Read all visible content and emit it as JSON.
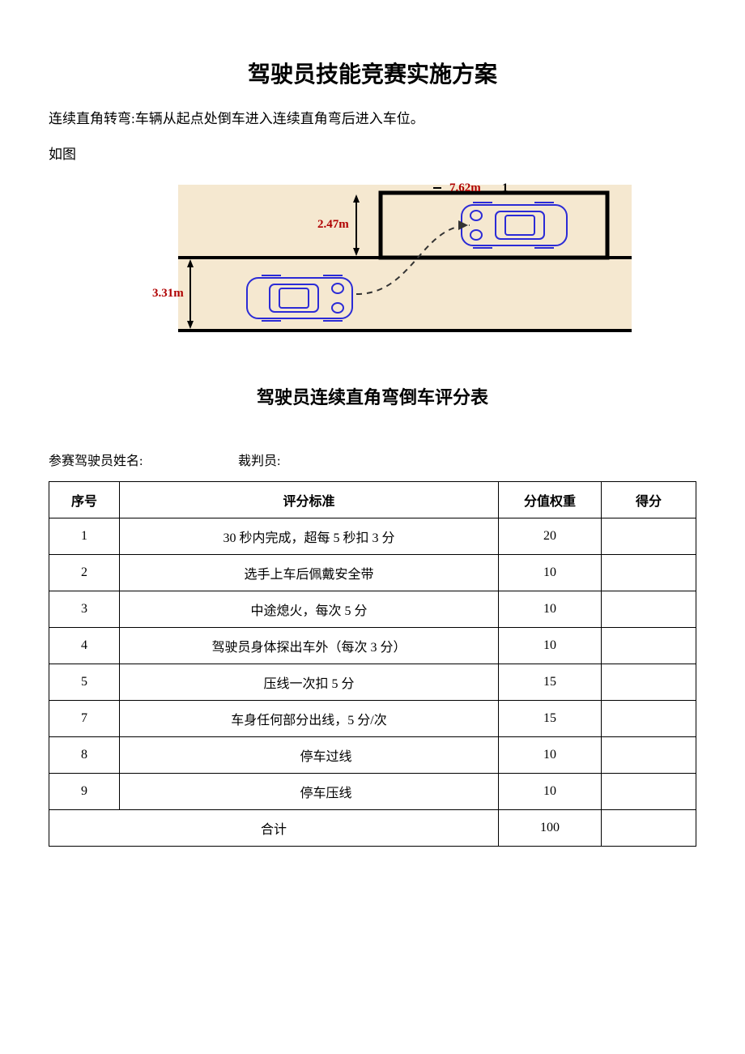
{
  "title": "驾驶员技能竞赛实施方案",
  "intro_line1": "连续直角转弯:车辆从起点处倒车进入连续直角弯后进入车位。",
  "intro_line2": "如图",
  "diagram": {
    "bg_color": "#f5e8d0",
    "line_color": "#000000",
    "car_color": "#2b2bd6",
    "label_color": "#b00000",
    "dim_top": "7.62m",
    "dim_top_extra": "1",
    "dim_slot_h": "2.47m",
    "dim_lane_h": "3.31m"
  },
  "subtitle": "驾驶员连续直角弯倒车评分表",
  "form": {
    "driver_label": "参赛驾驶员姓名:",
    "judge_label": "裁判员:"
  },
  "table": {
    "headers": {
      "seq": "序号",
      "crit": "评分标准",
      "weight": "分值权重",
      "score": "得分"
    },
    "rows": [
      {
        "seq": "1",
        "crit": "30 秒内完成，超每 5 秒扣 3 分",
        "weight": "20",
        "score": "",
        "big": true,
        "align": "center"
      },
      {
        "seq": "2",
        "crit": "选手上车后佩戴安全带",
        "weight": "10",
        "score": "",
        "big": false,
        "align": "center"
      },
      {
        "seq": "3",
        "crit": "中途熄火，每次 5 分",
        "weight": "10",
        "score": "",
        "big": false,
        "align": "center"
      },
      {
        "seq": "4",
        "crit": "驾驶员身体探出车外（每次 3 分）",
        "weight": "10",
        "score": "",
        "big": true,
        "align": "center"
      },
      {
        "seq": "5",
        "crit": "压线一次扣 5 分",
        "weight": "15",
        "score": "",
        "big": true,
        "align": "center"
      },
      {
        "seq": "7",
        "crit": "车身任何部分出线，5 分/次",
        "weight": "15",
        "score": "",
        "big": false,
        "align": "center"
      },
      {
        "seq": "8",
        "crit": "停车过线",
        "weight": "10",
        "score": "",
        "big": false,
        "align": "left"
      },
      {
        "seq": "9",
        "crit": "停车压线",
        "weight": "10",
        "score": "",
        "big": false,
        "align": "left"
      }
    ],
    "total": {
      "label": "合计",
      "weight": "100",
      "score": ""
    }
  }
}
